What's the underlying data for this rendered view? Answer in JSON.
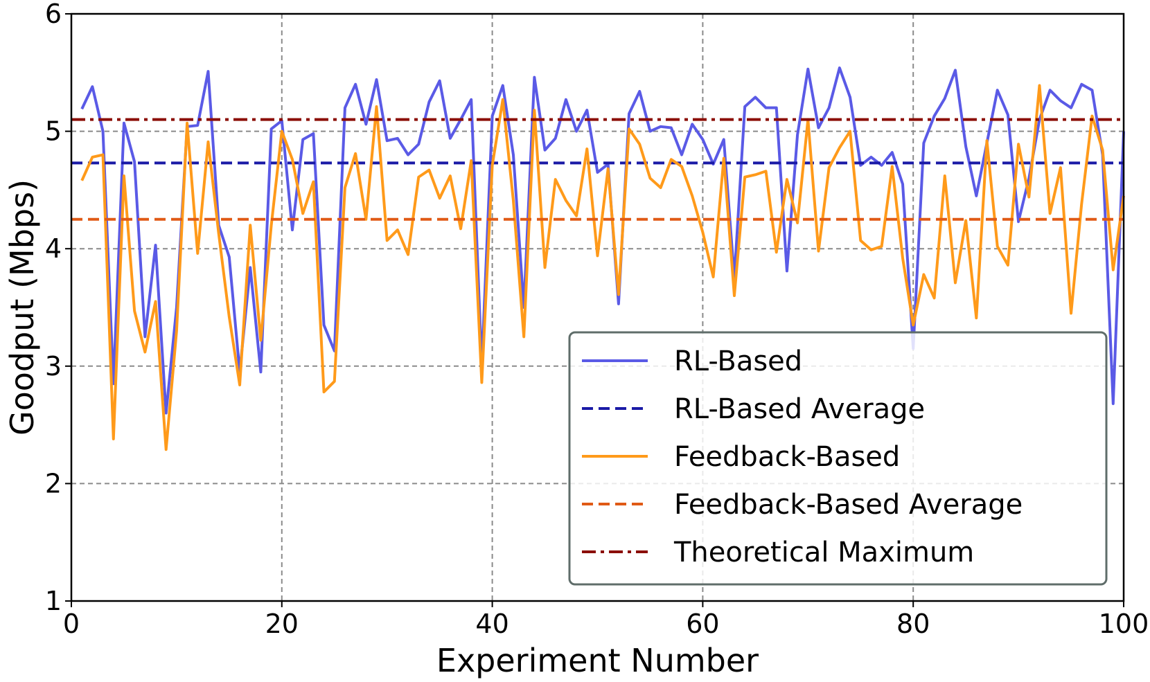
{
  "chart_data": {
    "type": "line",
    "xlabel": "Experiment Number",
    "ylabel": "Goodput (Mbps)",
    "xlim": [
      0,
      100
    ],
    "ylim": [
      1,
      6
    ],
    "xticks": [
      0,
      20,
      40,
      60,
      80,
      100
    ],
    "yticks": [
      1,
      2,
      3,
      4,
      5,
      6
    ],
    "xtick_labels": [
      "0",
      "20",
      "40",
      "60",
      "80",
      "100"
    ],
    "ytick_labels": [
      "1",
      "2",
      "3",
      "4",
      "5",
      "6"
    ],
    "grid": true,
    "legend_position": "lower-right",
    "x": [
      1,
      2,
      3,
      4,
      5,
      6,
      7,
      8,
      9,
      10,
      11,
      12,
      13,
      14,
      15,
      16,
      17,
      18,
      19,
      20,
      21,
      22,
      23,
      24,
      25,
      26,
      27,
      28,
      29,
      30,
      31,
      32,
      33,
      34,
      35,
      36,
      37,
      38,
      39,
      40,
      41,
      42,
      43,
      44,
      45,
      46,
      47,
      48,
      49,
      50,
      51,
      52,
      53,
      54,
      55,
      56,
      57,
      58,
      59,
      60,
      61,
      62,
      63,
      64,
      65,
      66,
      67,
      68,
      69,
      70,
      71,
      72,
      73,
      74,
      75,
      76,
      77,
      78,
      79,
      80,
      81,
      82,
      83,
      84,
      85,
      86,
      87,
      88,
      89,
      90,
      91,
      92,
      93,
      94,
      95,
      96,
      97,
      98,
      99,
      100
    ],
    "series": [
      {
        "name": "RL-Based",
        "color": "#5a5ae6",
        "style": "solid",
        "values": [
          5.19,
          5.38,
          5.0,
          2.85,
          5.07,
          4.74,
          3.25,
          4.03,
          2.6,
          3.5,
          5.04,
          5.05,
          5.51,
          4.2,
          3.93,
          2.95,
          3.84,
          2.95,
          5.02,
          5.09,
          4.16,
          4.93,
          4.98,
          3.35,
          3.13,
          5.2,
          5.4,
          5.06,
          5.44,
          4.92,
          4.94,
          4.8,
          4.89,
          5.25,
          5.43,
          4.94,
          5.1,
          5.27,
          3.0,
          5.13,
          5.39,
          4.8,
          3.5,
          5.46,
          4.84,
          4.94,
          5.27,
          5.0,
          5.18,
          4.65,
          4.72,
          3.53,
          5.15,
          5.34,
          5.0,
          5.04,
          5.03,
          4.8,
          5.06,
          4.93,
          4.72,
          4.93,
          3.75,
          5.21,
          5.29,
          5.2,
          5.2,
          3.81,
          4.97,
          5.53,
          5.03,
          5.2,
          5.54,
          5.29,
          4.71,
          4.78,
          4.71,
          4.82,
          4.55,
          3.15,
          4.9,
          5.13,
          5.28,
          5.52,
          4.87,
          4.45,
          4.9,
          5.35,
          5.14,
          4.23,
          4.6,
          5.1,
          5.35,
          5.26,
          5.2,
          5.4,
          5.35,
          4.8,
          2.68,
          5.0
        ]
      },
      {
        "name": "RL-Based Average",
        "color": "#1a1aa6",
        "style": "dashed",
        "constant": 4.73
      },
      {
        "name": "Feedback-Based",
        "color": "#ff9a1a",
        "style": "solid",
        "values": [
          4.58,
          4.78,
          4.8,
          2.38,
          4.62,
          3.47,
          3.12,
          3.55,
          2.29,
          3.3,
          5.07,
          3.96,
          4.91,
          4.13,
          3.42,
          2.84,
          4.2,
          3.22,
          4.2,
          5.0,
          4.76,
          4.3,
          4.57,
          2.78,
          2.87,
          4.52,
          4.81,
          4.25,
          5.21,
          4.07,
          4.16,
          3.95,
          4.61,
          4.67,
          4.43,
          4.62,
          4.17,
          4.75,
          2.86,
          4.71,
          5.27,
          4.41,
          3.25,
          5.18,
          3.84,
          4.59,
          4.41,
          4.28,
          4.85,
          3.94,
          4.68,
          3.61,
          5.02,
          4.89,
          4.6,
          4.52,
          4.76,
          4.7,
          4.45,
          4.14,
          3.76,
          4.77,
          3.6,
          4.61,
          4.63,
          4.66,
          3.97,
          4.59,
          4.22,
          5.1,
          3.98,
          4.69,
          4.86,
          5.0,
          4.07,
          3.99,
          4.02,
          4.7,
          3.92,
          3.35,
          3.78,
          3.58,
          4.62,
          3.71,
          4.24,
          3.41,
          4.92,
          4.02,
          3.86,
          4.89,
          4.44,
          5.39,
          4.3,
          4.69,
          3.45,
          4.38,
          5.13,
          4.84,
          3.82,
          4.45
        ]
      },
      {
        "name": "Feedback-Based Average",
        "color": "#e05a16",
        "style": "dashed",
        "constant": 4.25
      },
      {
        "name": "Theoretical Maximum",
        "color": "#8b0e05",
        "style": "dashdot",
        "constant": 5.1
      }
    ]
  }
}
